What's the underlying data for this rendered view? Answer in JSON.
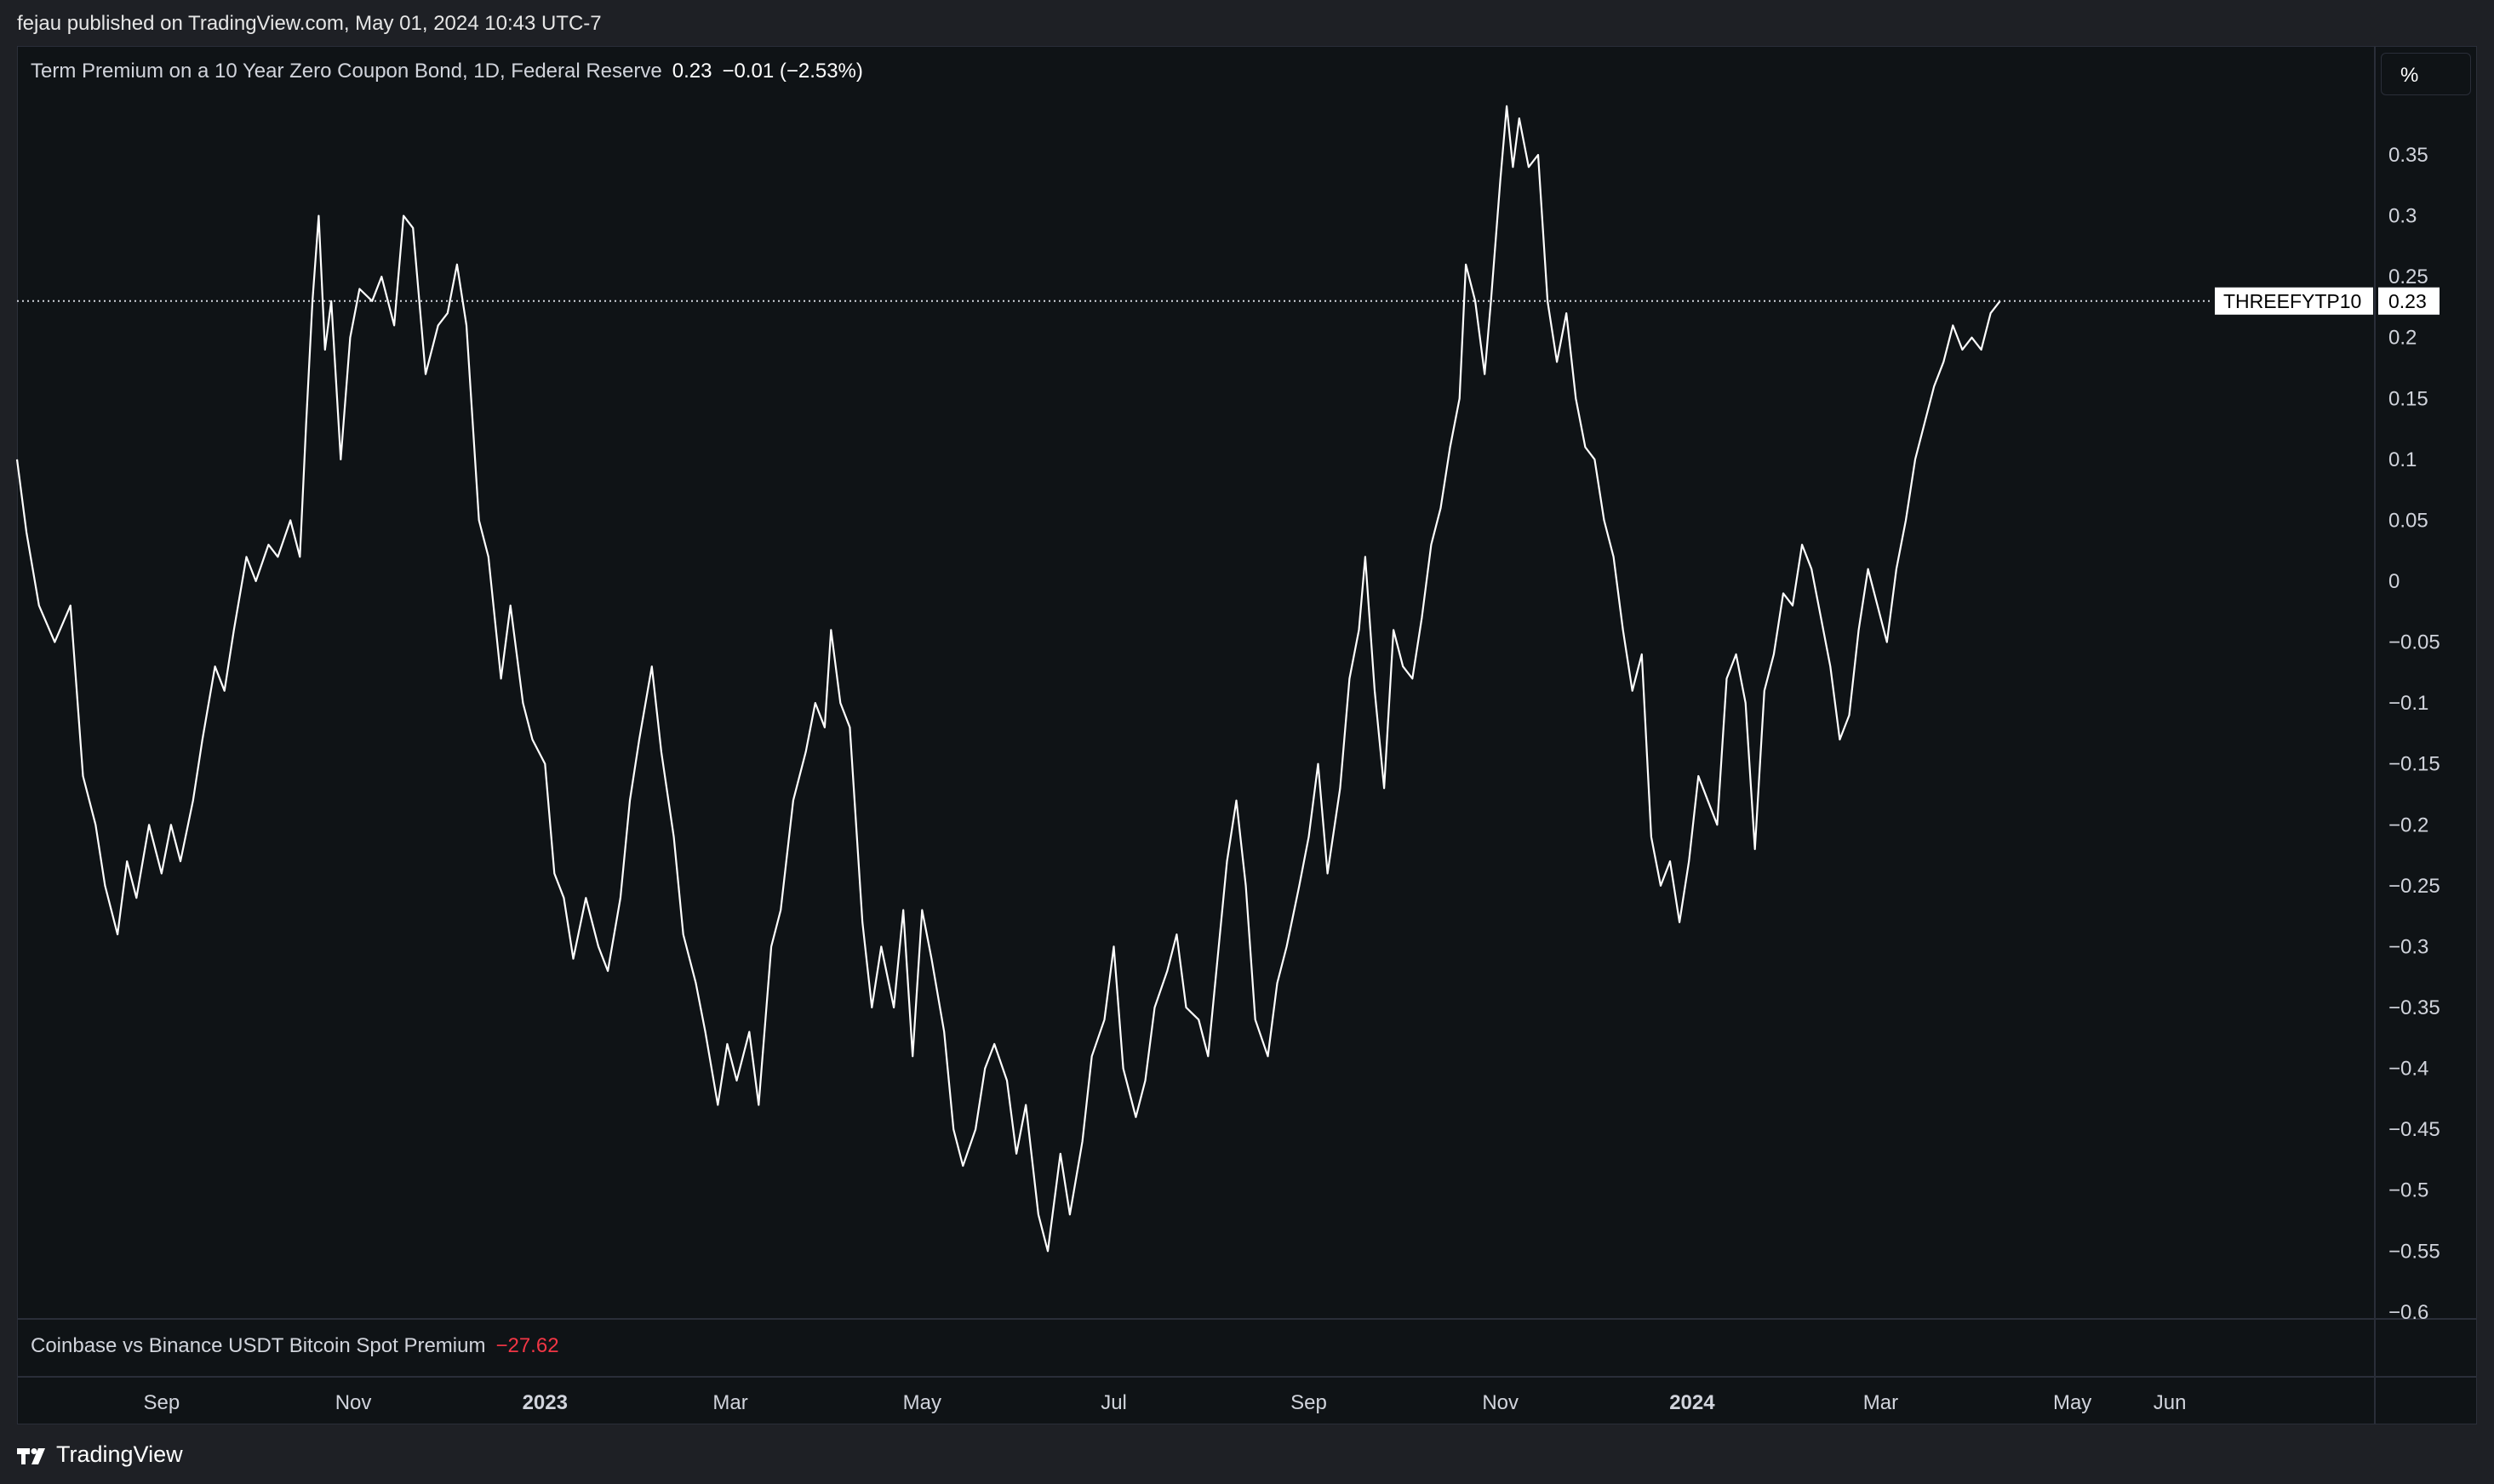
{
  "header": {
    "published_by": "fejau published on TradingView.com, May 01, 2024 10:43 UTC-7"
  },
  "legend": {
    "title": "Term Premium on a 10 Year Zero Coupon Bond, 1D, Federal Reserve",
    "value": "0.23",
    "change": "−0.01 (−2.53%)"
  },
  "legend2": {
    "title": "Coinbase vs Binance USDT Bitcoin Spot Premium",
    "value": "−27.62"
  },
  "scale_button": "%",
  "price_tag": {
    "symbol": "THREEFYTP10",
    "value": "0.23"
  },
  "brand": {
    "name": "TradingView",
    "icon": "tradingview-logo-icon"
  },
  "colors": {
    "background": "#0f1316",
    "line": "#ffffff",
    "negative": "#f23645",
    "text": "#d1d4dc"
  },
  "chart_data": {
    "type": "line",
    "grid": false,
    "ylim": [
      -0.6,
      0.4
    ],
    "y_ticks": [
      0.35,
      0.3,
      0.25,
      0.2,
      0.15,
      0.1,
      0.05,
      0,
      -0.05,
      -0.1,
      -0.15,
      -0.2,
      -0.25,
      -0.3,
      -0.35,
      -0.4,
      -0.45,
      -0.5,
      -0.55,
      -0.6
    ],
    "y_tick_labels": [
      "0.35",
      "0.3",
      "0.25",
      "0.2",
      "0.15",
      "0.1",
      "0.05",
      "0",
      "−0.05",
      "−0.1",
      "−0.15",
      "−0.2",
      "−0.25",
      "−0.3",
      "−0.35",
      "−0.4",
      "−0.45",
      "−0.5",
      "−0.55",
      "−0.6"
    ],
    "x_range": [
      "2022-07-17",
      "2024-07-20"
    ],
    "x_ticks": [
      {
        "date": "2022-09-01",
        "label": "Sep",
        "bold": false
      },
      {
        "date": "2022-11-01",
        "label": "Nov",
        "bold": false
      },
      {
        "date": "2023-01-01",
        "label": "2023",
        "bold": true
      },
      {
        "date": "2023-03-01",
        "label": "Mar",
        "bold": false
      },
      {
        "date": "2023-05-01",
        "label": "May",
        "bold": false
      },
      {
        "date": "2023-07-01",
        "label": "Jul",
        "bold": false
      },
      {
        "date": "2023-09-01",
        "label": "Sep",
        "bold": false
      },
      {
        "date": "2023-11-01",
        "label": "Nov",
        "bold": false
      },
      {
        "date": "2024-01-01",
        "label": "2024",
        "bold": true
      },
      {
        "date": "2024-03-01",
        "label": "Mar",
        "bold": false
      },
      {
        "date": "2024-05-01",
        "label": "May",
        "bold": false
      },
      {
        "date": "2024-06-01",
        "label": "Jun",
        "bold": false
      }
    ],
    "series": [
      {
        "points": [
          [
            "2022-07-17",
            0.1
          ],
          [
            "2022-07-20",
            0.04
          ],
          [
            "2022-07-24",
            -0.02
          ],
          [
            "2022-07-29",
            -0.05
          ],
          [
            "2022-08-03",
            -0.02
          ],
          [
            "2022-08-07",
            -0.16
          ],
          [
            "2022-08-11",
            -0.2
          ],
          [
            "2022-08-14",
            -0.25
          ],
          [
            "2022-08-18",
            -0.29
          ],
          [
            "2022-08-21",
            -0.23
          ],
          [
            "2022-08-24",
            -0.26
          ],
          [
            "2022-08-28",
            -0.2
          ],
          [
            "2022-09-01",
            -0.24
          ],
          [
            "2022-09-04",
            -0.2
          ],
          [
            "2022-09-07",
            -0.23
          ],
          [
            "2022-09-11",
            -0.18
          ],
          [
            "2022-09-14",
            -0.13
          ],
          [
            "2022-09-18",
            -0.07
          ],
          [
            "2022-09-21",
            -0.09
          ],
          [
            "2022-09-24",
            -0.04
          ],
          [
            "2022-09-28",
            0.02
          ],
          [
            "2022-10-01",
            0.0
          ],
          [
            "2022-10-05",
            0.03
          ],
          [
            "2022-10-08",
            0.02
          ],
          [
            "2022-10-12",
            0.05
          ],
          [
            "2022-10-15",
            0.02
          ],
          [
            "2022-10-17",
            0.13
          ],
          [
            "2022-10-19",
            0.23
          ],
          [
            "2022-10-21",
            0.3
          ],
          [
            "2022-10-23",
            0.19
          ],
          [
            "2022-10-25",
            0.23
          ],
          [
            "2022-10-28",
            0.1
          ],
          [
            "2022-10-31",
            0.2
          ],
          [
            "2022-11-03",
            0.24
          ],
          [
            "2022-11-07",
            0.23
          ],
          [
            "2022-11-10",
            0.25
          ],
          [
            "2022-11-14",
            0.21
          ],
          [
            "2022-11-17",
            0.3
          ],
          [
            "2022-11-20",
            0.29
          ],
          [
            "2022-11-24",
            0.17
          ],
          [
            "2022-11-28",
            0.21
          ],
          [
            "2022-12-01",
            0.22
          ],
          [
            "2022-12-04",
            0.26
          ],
          [
            "2022-12-07",
            0.21
          ],
          [
            "2022-12-11",
            0.05
          ],
          [
            "2022-12-14",
            0.02
          ],
          [
            "2022-12-18",
            -0.08
          ],
          [
            "2022-12-21",
            -0.02
          ],
          [
            "2022-12-25",
            -0.1
          ],
          [
            "2022-12-28",
            -0.13
          ],
          [
            "2023-01-01",
            -0.15
          ],
          [
            "2023-01-04",
            -0.24
          ],
          [
            "2023-01-07",
            -0.26
          ],
          [
            "2023-01-10",
            -0.31
          ],
          [
            "2023-01-14",
            -0.26
          ],
          [
            "2023-01-18",
            -0.3
          ],
          [
            "2023-01-21",
            -0.32
          ],
          [
            "2023-01-25",
            -0.26
          ],
          [
            "2023-01-28",
            -0.18
          ],
          [
            "2023-01-31",
            -0.13
          ],
          [
            "2023-02-04",
            -0.07
          ],
          [
            "2023-02-07",
            -0.14
          ],
          [
            "2023-02-11",
            -0.21
          ],
          [
            "2023-02-14",
            -0.29
          ],
          [
            "2023-02-18",
            -0.33
          ],
          [
            "2023-02-21",
            -0.37
          ],
          [
            "2023-02-25",
            -0.43
          ],
          [
            "2023-02-28",
            -0.38
          ],
          [
            "2023-03-03",
            -0.41
          ],
          [
            "2023-03-07",
            -0.37
          ],
          [
            "2023-03-10",
            -0.43
          ],
          [
            "2023-03-14",
            -0.3
          ],
          [
            "2023-03-17",
            -0.27
          ],
          [
            "2023-03-21",
            -0.18
          ],
          [
            "2023-03-25",
            -0.14
          ],
          [
            "2023-03-28",
            -0.1
          ],
          [
            "2023-03-31",
            -0.12
          ],
          [
            "2023-04-02",
            -0.04
          ],
          [
            "2023-04-05",
            -0.1
          ],
          [
            "2023-04-08",
            -0.12
          ],
          [
            "2023-04-12",
            -0.28
          ],
          [
            "2023-04-15",
            -0.35
          ],
          [
            "2023-04-18",
            -0.3
          ],
          [
            "2023-04-22",
            -0.35
          ],
          [
            "2023-04-25",
            -0.27
          ],
          [
            "2023-04-28",
            -0.39
          ],
          [
            "2023-05-01",
            -0.27
          ],
          [
            "2023-05-04",
            -0.31
          ],
          [
            "2023-05-08",
            -0.37
          ],
          [
            "2023-05-11",
            -0.45
          ],
          [
            "2023-05-14",
            -0.48
          ],
          [
            "2023-05-18",
            -0.45
          ],
          [
            "2023-05-21",
            -0.4
          ],
          [
            "2023-05-24",
            -0.38
          ],
          [
            "2023-05-28",
            -0.41
          ],
          [
            "2023-05-31",
            -0.47
          ],
          [
            "2023-06-03",
            -0.43
          ],
          [
            "2023-06-07",
            -0.52
          ],
          [
            "2023-06-10",
            -0.55
          ],
          [
            "2023-06-14",
            -0.47
          ],
          [
            "2023-06-17",
            -0.52
          ],
          [
            "2023-06-21",
            -0.46
          ],
          [
            "2023-06-24",
            -0.39
          ],
          [
            "2023-06-28",
            -0.36
          ],
          [
            "2023-07-01",
            -0.3
          ],
          [
            "2023-07-04",
            -0.4
          ],
          [
            "2023-07-08",
            -0.44
          ],
          [
            "2023-07-11",
            -0.41
          ],
          [
            "2023-07-14",
            -0.35
          ],
          [
            "2023-07-18",
            -0.32
          ],
          [
            "2023-07-21",
            -0.29
          ],
          [
            "2023-07-24",
            -0.35
          ],
          [
            "2023-07-28",
            -0.36
          ],
          [
            "2023-07-31",
            -0.39
          ],
          [
            "2023-08-03",
            -0.31
          ],
          [
            "2023-08-06",
            -0.23
          ],
          [
            "2023-08-09",
            -0.18
          ],
          [
            "2023-08-12",
            -0.25
          ],
          [
            "2023-08-15",
            -0.36
          ],
          [
            "2023-08-19",
            -0.39
          ],
          [
            "2023-08-22",
            -0.33
          ],
          [
            "2023-08-25",
            -0.3
          ],
          [
            "2023-08-29",
            -0.25
          ],
          [
            "2023-09-01",
            -0.21
          ],
          [
            "2023-09-04",
            -0.15
          ],
          [
            "2023-09-07",
            -0.24
          ],
          [
            "2023-09-11",
            -0.17
          ],
          [
            "2023-09-14",
            -0.08
          ],
          [
            "2023-09-17",
            -0.04
          ],
          [
            "2023-09-19",
            0.02
          ],
          [
            "2023-09-22",
            -0.09
          ],
          [
            "2023-09-25",
            -0.17
          ],
          [
            "2023-09-28",
            -0.04
          ],
          [
            "2023-10-01",
            -0.07
          ],
          [
            "2023-10-04",
            -0.08
          ],
          [
            "2023-10-07",
            -0.03
          ],
          [
            "2023-10-10",
            0.03
          ],
          [
            "2023-10-13",
            0.06
          ],
          [
            "2023-10-16",
            0.11
          ],
          [
            "2023-10-19",
            0.15
          ],
          [
            "2023-10-21",
            0.26
          ],
          [
            "2023-10-24",
            0.23
          ],
          [
            "2023-10-27",
            0.17
          ],
          [
            "2023-10-29",
            0.23
          ],
          [
            "2023-11-01",
            0.33
          ],
          [
            "2023-11-03",
            0.39
          ],
          [
            "2023-11-05",
            0.34
          ],
          [
            "2023-11-07",
            0.38
          ],
          [
            "2023-11-10",
            0.34
          ],
          [
            "2023-11-13",
            0.35
          ],
          [
            "2023-11-16",
            0.23
          ],
          [
            "2023-11-19",
            0.18
          ],
          [
            "2023-11-22",
            0.22
          ],
          [
            "2023-11-25",
            0.15
          ],
          [
            "2023-11-28",
            0.11
          ],
          [
            "2023-12-01",
            0.1
          ],
          [
            "2023-12-04",
            0.05
          ],
          [
            "2023-12-07",
            0.02
          ],
          [
            "2023-12-10",
            -0.04
          ],
          [
            "2023-12-13",
            -0.09
          ],
          [
            "2023-12-16",
            -0.06
          ],
          [
            "2023-12-19",
            -0.21
          ],
          [
            "2023-12-22",
            -0.25
          ],
          [
            "2023-12-25",
            -0.23
          ],
          [
            "2023-12-28",
            -0.28
          ],
          [
            "2023-12-31",
            -0.23
          ],
          [
            "2024-01-03",
            -0.16
          ],
          [
            "2024-01-06",
            -0.18
          ],
          [
            "2024-01-09",
            -0.2
          ],
          [
            "2024-01-12",
            -0.08
          ],
          [
            "2024-01-15",
            -0.06
          ],
          [
            "2024-01-18",
            -0.1
          ],
          [
            "2024-01-21",
            -0.22
          ],
          [
            "2024-01-24",
            -0.09
          ],
          [
            "2024-01-27",
            -0.06
          ],
          [
            "2024-01-30",
            -0.01
          ],
          [
            "2024-02-02",
            -0.02
          ],
          [
            "2024-02-05",
            0.03
          ],
          [
            "2024-02-08",
            0.01
          ],
          [
            "2024-02-11",
            -0.03
          ],
          [
            "2024-02-14",
            -0.07
          ],
          [
            "2024-02-17",
            -0.13
          ],
          [
            "2024-02-20",
            -0.11
          ],
          [
            "2024-02-23",
            -0.04
          ],
          [
            "2024-02-26",
            0.01
          ],
          [
            "2024-02-29",
            -0.02
          ],
          [
            "2024-03-03",
            -0.05
          ],
          [
            "2024-03-06",
            0.01
          ],
          [
            "2024-03-09",
            0.05
          ],
          [
            "2024-03-12",
            0.1
          ],
          [
            "2024-03-15",
            0.13
          ],
          [
            "2024-03-18",
            0.16
          ],
          [
            "2024-03-21",
            0.18
          ],
          [
            "2024-03-24",
            0.21
          ],
          [
            "2024-03-27",
            0.19
          ],
          [
            "2024-03-30",
            0.2
          ],
          [
            "2024-04-02",
            0.19
          ],
          [
            "2024-04-05",
            0.22
          ],
          [
            "2024-04-08",
            0.23
          ]
        ]
      }
    ]
  }
}
